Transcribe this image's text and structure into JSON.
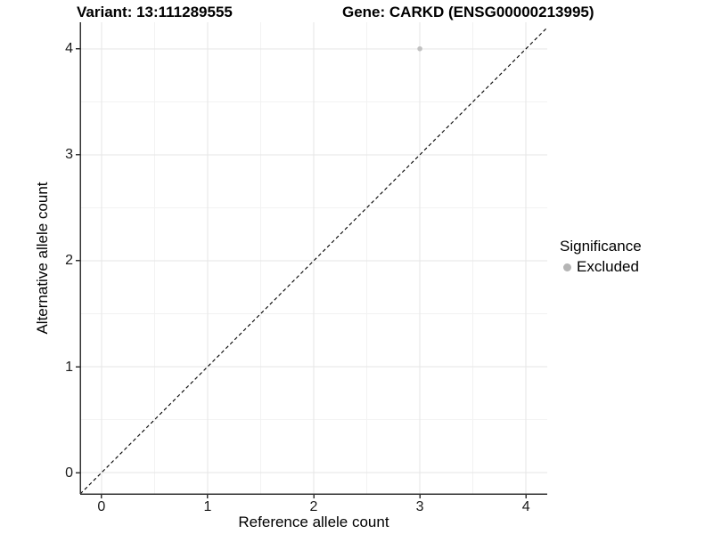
{
  "chart_data": {
    "type": "scatter",
    "title_left": "Variant: 13:111289555",
    "title_right": "Gene: CARKD (ENSG00000213995)",
    "xlabel": "Reference allele count",
    "ylabel": "Alternative allele count",
    "xlim": [
      -0.2,
      4.2
    ],
    "ylim": [
      -0.2,
      4.25
    ],
    "xticks": [
      0,
      1,
      2,
      3,
      4
    ],
    "yticks": [
      0,
      1,
      2,
      3,
      4
    ],
    "xticks_minor": [
      0.5,
      1.5,
      2.5,
      3.5
    ],
    "yticks_minor": [
      0.5,
      1.5,
      2.5,
      3.5
    ],
    "grid": "major+minor",
    "legend": {
      "title": "Significance",
      "position": "right",
      "items": [
        {
          "label": "Excluded",
          "marker": "dot",
          "color": "#b5b5b5"
        }
      ]
    },
    "series": [
      {
        "name": "Excluded",
        "color": "#c1c1c1",
        "points": [
          {
            "x": 3,
            "y": 4
          }
        ]
      }
    ],
    "reference_line": {
      "type": "abline",
      "slope": 1,
      "intercept": 0,
      "style": "dashed",
      "color": "#000000"
    },
    "colors": {
      "background": "#ffffff",
      "grid_major": "#e6e6e6",
      "grid_minor": "#f2f2f2",
      "axis_line": "#333333",
      "tick_mark": "#333333",
      "point": "#c1c1c1",
      "legend_marker": "#b5b5b5",
      "text": "#000000"
    }
  }
}
